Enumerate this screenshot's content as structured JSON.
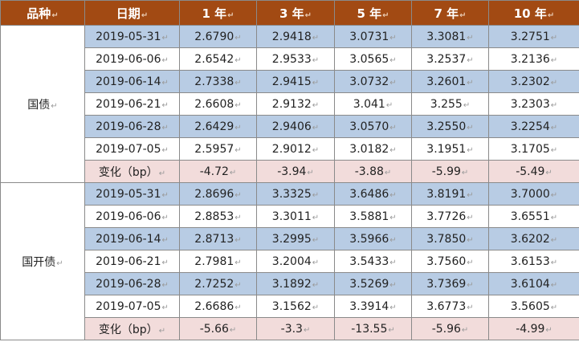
{
  "colors": {
    "header_bg": "#a24a13",
    "header_text": "#ffffff",
    "row_blue": "#b8cce4",
    "row_white": "#ffffff",
    "row_change": "#f2dcdb",
    "grid": "#8a8a8a"
  },
  "table": {
    "headers": [
      "品种",
      "日期",
      "1 年",
      "3 年",
      "5 年",
      "7 年",
      "10 年"
    ],
    "groups": [
      {
        "name": "国债",
        "rows": [
          {
            "date": "2019-05-31",
            "values": [
              "2.6790",
              "2.9418",
              "3.0731",
              "3.3081",
              "3.2751"
            ],
            "style": "blue"
          },
          {
            "date": "2019-06-06",
            "values": [
              "2.6542",
              "2.9533",
              "3.0565",
              "3.2537",
              "3.2136"
            ],
            "style": "white"
          },
          {
            "date": "2019-06-14",
            "values": [
              "2.7338",
              "2.9415",
              "3.0732",
              "3.2601",
              "3.2302"
            ],
            "style": "blue"
          },
          {
            "date": "2019-06-21",
            "values": [
              "2.6608",
              "2.9132",
              "3.041",
              "3.255",
              "3.2303"
            ],
            "style": "white"
          },
          {
            "date": "2019-06-28",
            "values": [
              "2.6429",
              "2.9406",
              "3.0570",
              "3.2550",
              "3.2254"
            ],
            "style": "blue"
          },
          {
            "date": "2019-07-05",
            "values": [
              "2.5957",
              "2.9012",
              "3.0182",
              "3.1951",
              "3.1705"
            ],
            "style": "white"
          },
          {
            "date": "变化（bp）",
            "values": [
              "-4.72",
              "-3.94",
              "-3.88",
              "-5.99",
              "-5.49"
            ],
            "style": "change"
          }
        ]
      },
      {
        "name": "国开债",
        "rows": [
          {
            "date": "2019-05-31",
            "values": [
              "2.8696",
              "3.3325",
              "3.6486",
              "3.8191",
              "3.7000"
            ],
            "style": "blue"
          },
          {
            "date": "2019-06-06",
            "values": [
              "2.8853",
              "3.3011",
              "3.5881",
              "3.7726",
              "3.6551"
            ],
            "style": "white"
          },
          {
            "date": "2019-06-14",
            "values": [
              "2.8713",
              "3.2995",
              "3.5966",
              "3.7850",
              "3.6202"
            ],
            "style": "blue"
          },
          {
            "date": "2019-06-21",
            "values": [
              "2.7981",
              "3.2004",
              "3.5433",
              "3.7560",
              "3.6153"
            ],
            "style": "white"
          },
          {
            "date": "2019-06-28",
            "values": [
              "2.7252",
              "3.1892",
              "3.5269",
              "3.7369",
              "3.6104"
            ],
            "style": "blue"
          },
          {
            "date": "2019-07-05",
            "values": [
              "2.6686",
              "3.1562",
              "3.3914",
              "3.6773",
              "3.5605"
            ],
            "style": "white"
          },
          {
            "date": "变化（bp）",
            "values": [
              "-5.66",
              "-3.3",
              "-13.55",
              "-5.96",
              "-4.99"
            ],
            "style": "change"
          }
        ]
      }
    ]
  }
}
